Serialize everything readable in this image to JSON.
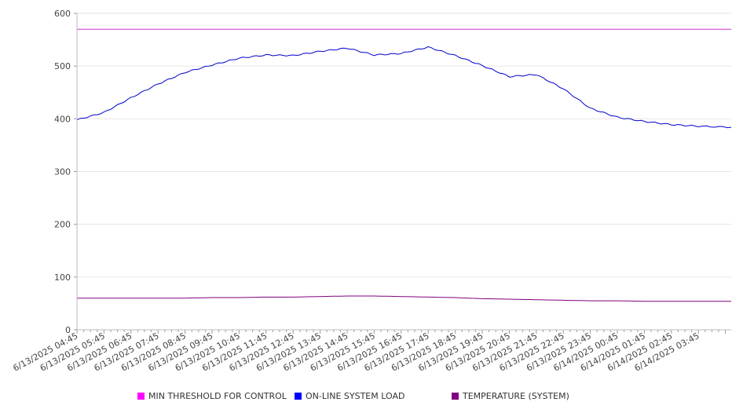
{
  "chart_data": {
    "type": "line",
    "title": "",
    "xlabel": "",
    "ylabel": "",
    "ylim": [
      0,
      600
    ],
    "y_ticks": [
      0,
      100,
      200,
      300,
      400,
      500,
      600
    ],
    "grid": "horizontal",
    "legend_position": "bottom",
    "x_tick_labels": [
      "6/13/2025 04:45",
      "6/13/2025 05:45",
      "6/13/2025 06:45",
      "6/13/2025 07:45",
      "6/13/2025 08:45",
      "6/13/2025 09:45",
      "6/13/2025 10:45",
      "6/13/2025 11:45",
      "6/13/2025 12:45",
      "6/13/2025 13:45",
      "6/13/2025 14:45",
      "6/13/2025 15:45",
      "6/13/2025 16:45",
      "6/13/2025 17:45",
      "6/13/2025 18:45",
      "6/13/2025 19:45",
      "6/13/2025 20:45",
      "6/13/2025 21:45",
      "6/13/2025 22:45",
      "6/13/2025 23:45",
      "6/14/2025 00:45",
      "6/14/2025 01:45",
      "6/14/2025 02:45",
      "6/14/2025 03:45"
    ],
    "x": [
      "6/13/2025 04:45",
      "6/13/2025 05:45",
      "6/13/2025 06:45",
      "6/13/2025 07:45",
      "6/13/2025 08:45",
      "6/13/2025 09:45",
      "6/13/2025 10:45",
      "6/13/2025 11:45",
      "6/13/2025 12:45",
      "6/13/2025 13:45",
      "6/13/2025 14:45",
      "6/13/2025 15:45",
      "6/13/2025 16:45",
      "6/13/2025 17:45",
      "6/13/2025 18:45",
      "6/13/2025 19:45",
      "6/13/2025 20:45",
      "6/13/2025 21:45",
      "6/13/2025 22:45",
      "6/13/2025 23:45",
      "6/14/2025 00:45",
      "6/14/2025 01:45",
      "6/14/2025 02:45",
      "6/14/2025 03:45",
      "6/14/2025 04:30"
    ],
    "series": [
      {
        "name": "MIN THRESHOLD FOR CONTROL",
        "color": "#cc33cc",
        "values": [
          570,
          570,
          570,
          570,
          570,
          570,
          570,
          570,
          570,
          570,
          570,
          570,
          570,
          570,
          570,
          570,
          570,
          570,
          570,
          570,
          570,
          570,
          570,
          570,
          570
        ]
      },
      {
        "name": "ON-LINE SYSTEM LOAD",
        "color": "#0000cc",
        "values": [
          398,
          412,
          440,
          466,
          488,
          502,
          515,
          521,
          520,
          528,
          534,
          521,
          524,
          536,
          520,
          501,
          480,
          484,
          457,
          420,
          403,
          395,
          389,
          386,
          384
        ]
      },
      {
        "name": "TEMPERATURE (SYSTEM)",
        "color": "#800080",
        "values": [
          60,
          60,
          60,
          60,
          60,
          61,
          61,
          62,
          62,
          63,
          64,
          64,
          63,
          62,
          61,
          59,
          58,
          57,
          56,
          55,
          55,
          54,
          54,
          54,
          54
        ]
      }
    ]
  },
  "legend": {
    "items": [
      {
        "label": "MIN THRESHOLD FOR CONTROL",
        "color": "#ff00ff"
      },
      {
        "label": "ON-LINE SYSTEM LOAD",
        "color": "#0000ff"
      },
      {
        "label": "TEMPERATURE (SYSTEM)",
        "color": "#800080"
      }
    ]
  }
}
